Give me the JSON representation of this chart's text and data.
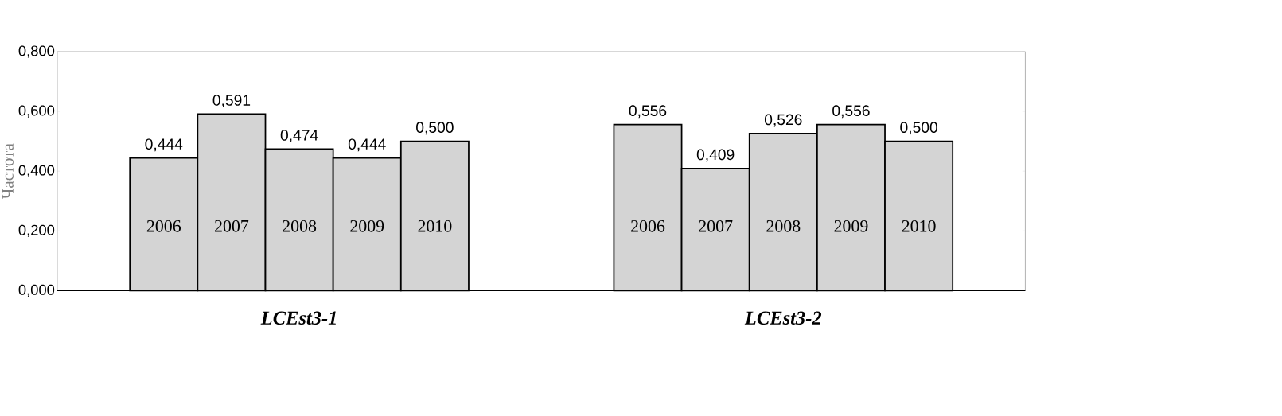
{
  "chart_data": {
    "type": "bar",
    "ylabel": "Частота",
    "categories": [
      "LCEst3-1",
      "LCEst3-2"
    ],
    "series": [
      {
        "name": "2006",
        "color": "#d4d4d4",
        "values": [
          0.444,
          0.556
        ],
        "value_labels": [
          "0,444",
          "0,556"
        ]
      },
      {
        "name": "2007",
        "color": "#d4d4d4",
        "values": [
          0.591,
          0.409
        ],
        "value_labels": [
          "0,591",
          "0,409"
        ]
      },
      {
        "name": "2008",
        "color": "#d4d4d4",
        "values": [
          0.474,
          0.526
        ],
        "value_labels": [
          "0,474",
          "0,526"
        ]
      },
      {
        "name": "2009",
        "color": "#d4d4d4",
        "values": [
          0.444,
          0.556
        ],
        "value_labels": [
          "0,444",
          "0,556"
        ]
      },
      {
        "name": "2010",
        "color": "#d4d4d4",
        "values": [
          0.5,
          0.5
        ],
        "value_labels": [
          "0,500",
          "0,500"
        ]
      }
    ],
    "ylim": [
      0,
      0.8
    ],
    "yticks": [
      {
        "value": 0,
        "label": "0,000"
      },
      {
        "value": 0.2,
        "label": "0,200"
      },
      {
        "value": 0.4,
        "label": "0,400"
      },
      {
        "value": 0.6,
        "label": "0,600"
      },
      {
        "value": 0.8,
        "label": "0,800"
      }
    ],
    "grid": false,
    "legend": false
  }
}
